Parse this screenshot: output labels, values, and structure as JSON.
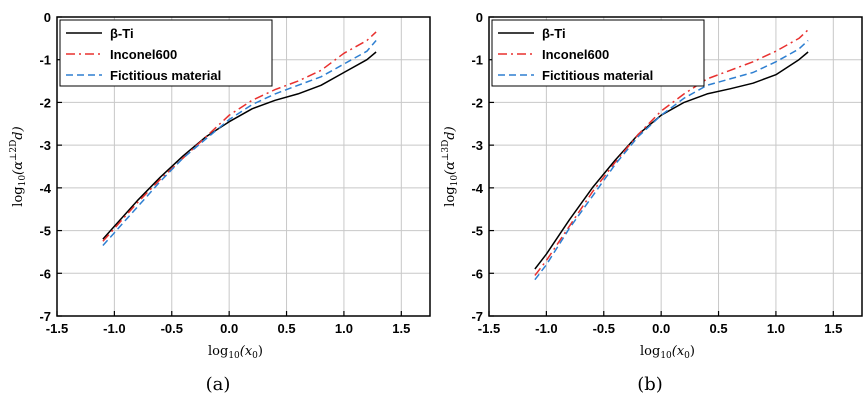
{
  "chart_data": [
    {
      "type": "line",
      "caption": "(a)",
      "xlabel": {
        "base": "log",
        "sub": "10",
        "rest": "(x",
        "sub2": "0",
        "tail": ")"
      },
      "ylabel": {
        "base": "log",
        "sub": "10",
        "mid": "(α",
        "sup": "⊥2D",
        "tail": "d)"
      },
      "xlim": [
        -1.5,
        1.75
      ],
      "ylim": [
        -7,
        0
      ],
      "xticks": [
        -1.5,
        -1.0,
        -0.5,
        0.0,
        0.5,
        1.0,
        1.5
      ],
      "xtick_labels": [
        "-1.5",
        "-1.0",
        "-0.5",
        "0.0",
        "0.5",
        "1.0",
        "1.5"
      ],
      "yticks": [
        -7,
        -6,
        -5,
        -4,
        -3,
        -2,
        -1,
        0
      ],
      "ytick_labels": [
        "-7",
        "-6",
        "-5",
        "-4",
        "-3",
        "-2",
        "-1",
        "0"
      ],
      "grid": true,
      "legend_position": "top-left",
      "series": [
        {
          "name": "β-Ti",
          "color": "#000000",
          "dash": "solid",
          "x": [
            -1.1,
            -1.0,
            -0.8,
            -0.6,
            -0.4,
            -0.2,
            0.0,
            0.2,
            0.4,
            0.6,
            0.8,
            1.0,
            1.2,
            1.28
          ],
          "y": [
            -5.2,
            -4.9,
            -4.3,
            -3.75,
            -3.25,
            -2.8,
            -2.45,
            -2.15,
            -1.95,
            -1.8,
            -1.6,
            -1.3,
            -1.0,
            -0.82
          ]
        },
        {
          "name": "Inconel600",
          "color": "#e8312f",
          "dash": "dashdot",
          "x": [
            -1.1,
            -1.0,
            -0.8,
            -0.6,
            -0.4,
            -0.2,
            0.0,
            0.2,
            0.4,
            0.6,
            0.8,
            1.0,
            1.2,
            1.28
          ],
          "y": [
            -5.25,
            -4.95,
            -4.35,
            -3.8,
            -3.3,
            -2.8,
            -2.3,
            -1.95,
            -1.7,
            -1.5,
            -1.25,
            -0.85,
            -0.55,
            -0.35
          ]
        },
        {
          "name": "Fictitious material",
          "color": "#2e7fd1",
          "dash": "dashed",
          "x": [
            -1.1,
            -1.0,
            -0.8,
            -0.6,
            -0.4,
            -0.2,
            0.0,
            0.2,
            0.4,
            0.6,
            0.8,
            1.0,
            1.2,
            1.28
          ],
          "y": [
            -5.35,
            -5.05,
            -4.45,
            -3.85,
            -3.3,
            -2.85,
            -2.4,
            -2.05,
            -1.8,
            -1.6,
            -1.4,
            -1.1,
            -0.8,
            -0.55
          ]
        }
      ]
    },
    {
      "type": "line",
      "caption": "(b)",
      "xlabel": {
        "base": "log",
        "sub": "10",
        "rest": "(x",
        "sub2": "0",
        "tail": ")"
      },
      "ylabel": {
        "base": "log",
        "sub": "10",
        "mid": "(α",
        "sup": "⊥3D",
        "tail": "d)"
      },
      "xlim": [
        -1.5,
        1.75
      ],
      "ylim": [
        -7,
        0
      ],
      "xticks": [
        -1.5,
        -1.0,
        -0.5,
        0.0,
        0.5,
        1.0,
        1.5
      ],
      "xtick_labels": [
        "-1.5",
        "-1.0",
        "-0.5",
        "0.0",
        "0.5",
        "1.0",
        "1.5"
      ],
      "yticks": [
        -7,
        -6,
        -5,
        -4,
        -3,
        -2,
        -1,
        0
      ],
      "ytick_labels": [
        "-7",
        "-6",
        "-5",
        "-4",
        "-3",
        "-2",
        "-1",
        "0"
      ],
      "grid": true,
      "legend_position": "top-left",
      "series": [
        {
          "name": "β-Ti",
          "color": "#000000",
          "dash": "solid",
          "x": [
            -1.1,
            -1.0,
            -0.8,
            -0.6,
            -0.4,
            -0.2,
            0.0,
            0.2,
            0.4,
            0.6,
            0.8,
            1.0,
            1.2,
            1.28
          ],
          "y": [
            -5.9,
            -5.55,
            -4.75,
            -4.0,
            -3.35,
            -2.75,
            -2.3,
            -2.0,
            -1.8,
            -1.68,
            -1.55,
            -1.35,
            -1.0,
            -0.82
          ]
        },
        {
          "name": "Inconel600",
          "color": "#e8312f",
          "dash": "dashdot",
          "x": [
            -1.1,
            -1.0,
            -0.8,
            -0.6,
            -0.4,
            -0.2,
            0.0,
            0.2,
            0.4,
            0.6,
            0.8,
            1.0,
            1.2,
            1.28
          ],
          "y": [
            -6.05,
            -5.7,
            -4.9,
            -4.1,
            -3.4,
            -2.75,
            -2.2,
            -1.8,
            -1.45,
            -1.25,
            -1.05,
            -0.8,
            -0.5,
            -0.3
          ]
        },
        {
          "name": "Fictitious material",
          "color": "#2e7fd1",
          "dash": "dashed",
          "x": [
            -1.1,
            -1.0,
            -0.8,
            -0.6,
            -0.4,
            -0.2,
            0.0,
            0.2,
            0.4,
            0.6,
            0.8,
            1.0,
            1.2,
            1.28
          ],
          "y": [
            -6.15,
            -5.8,
            -4.95,
            -4.2,
            -3.45,
            -2.8,
            -2.3,
            -1.9,
            -1.6,
            -1.45,
            -1.3,
            -1.05,
            -0.75,
            -0.55
          ]
        }
      ]
    }
  ]
}
